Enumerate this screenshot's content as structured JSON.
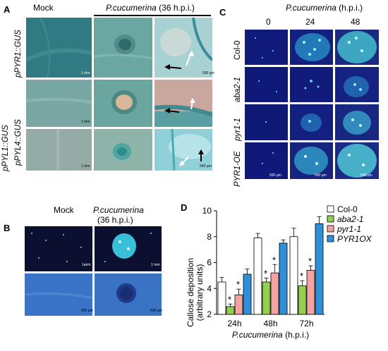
{
  "panel_a": {
    "label": "A",
    "col_mock": "Mock",
    "col_pathogen": "P.cucumerina",
    "col_pathogen_time": "(36 h.p.i.)",
    "rows": [
      "pPYR1::GUS",
      "pPYL1::GUS",
      "pPYL4::GUS"
    ],
    "scale_1mm": "1 mm",
    "scale_500um": "500 µm"
  },
  "panel_b": {
    "label": "B",
    "col_mock": "Mock",
    "col_pathogen": "P.cucumerina",
    "col_pathogen_time": "(36 h.p.i.)",
    "scale_1mm": "1 mm",
    "scale_500um": "500 µm"
  },
  "panel_c": {
    "label": "C",
    "title": "P.cucumerina",
    "title_suffix": "(h.p.i.)",
    "timepoints": [
      "0",
      "24",
      "48"
    ],
    "rows": [
      "Col-0",
      "aba2-1",
      "pyr1-1",
      "PYR1-OE"
    ],
    "scale_500um": "500 µm"
  },
  "panel_d": {
    "label": "D",
    "significance_mark": "*"
  },
  "chart_data": {
    "type": "bar",
    "categories": [
      "24h",
      "48h",
      "72h"
    ],
    "xlabel": "P.cucumerina (h.p.i.)",
    "ylabel": "Callose deposition (arbitrary units)",
    "ylim": [
      2,
      10
    ],
    "yticks": [
      2,
      4,
      6,
      8,
      10
    ],
    "legend_position": "top-right",
    "series": [
      {
        "name": "Col-0",
        "color": "#ffffff",
        "values": [
          4.5,
          7.9,
          8.0
        ],
        "errors": [
          0.35,
          0.35,
          0.65
        ],
        "significant": [
          false,
          false,
          false
        ]
      },
      {
        "name": "aba2-1",
        "color": "#92d050",
        "values": [
          2.6,
          4.5,
          4.2
        ],
        "errors": [
          0.2,
          0.3,
          0.4
        ],
        "significant": [
          true,
          true,
          true
        ]
      },
      {
        "name": "pyr1-1",
        "color": "#f4a3a3",
        "values": [
          3.5,
          5.2,
          5.4
        ],
        "errors": [
          0.45,
          0.65,
          0.35
        ],
        "significant": [
          true,
          true,
          true
        ]
      },
      {
        "name": "PYR1OX",
        "color": "#2f8fd8",
        "values": [
          5.1,
          7.5,
          9.0
        ],
        "errors": [
          0.4,
          0.25,
          0.55
        ],
        "significant": [
          false,
          false,
          false
        ]
      }
    ]
  }
}
